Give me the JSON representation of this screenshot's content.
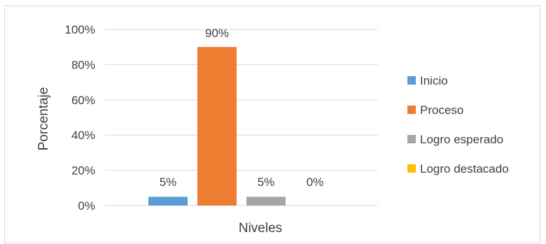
{
  "chart_data": {
    "type": "bar",
    "title": "",
    "xlabel": "Niveles",
    "ylabel": "Porcentaje",
    "ylim": [
      0,
      100
    ],
    "yticks": [
      "0%",
      "20%",
      "40%",
      "60%",
      "80%",
      "100%"
    ],
    "grid": true,
    "legend_position": "right",
    "series": [
      {
        "name": "Inicio",
        "value": 5,
        "label": "5%",
        "color": "#5b9bd5"
      },
      {
        "name": "Proceso",
        "value": 90,
        "label": "90%",
        "color": "#ed7d31"
      },
      {
        "name": "Logro esperado",
        "value": 5,
        "label": "5%",
        "color": "#a5a5a5"
      },
      {
        "name": "Logro destacado",
        "value": 0,
        "label": "0%",
        "color": "#ffc000"
      }
    ]
  }
}
